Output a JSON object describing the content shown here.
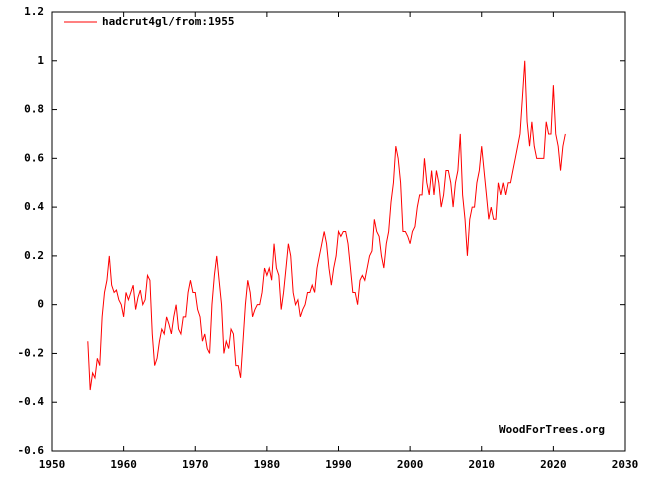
{
  "chart_data": {
    "type": "line",
    "annotation": "WoodForTrees.org",
    "legend": "top-left",
    "grid": false,
    "xlim": [
      1950,
      2030
    ],
    "xticks": [
      1950,
      1960,
      1970,
      1980,
      1990,
      2000,
      2010,
      2020,
      2030
    ],
    "ylim": [
      -0.6,
      1.2
    ],
    "yticks": [
      -0.6,
      -0.4,
      -0.2,
      0,
      0.2,
      0.4,
      0.6,
      0.8,
      1,
      1.2
    ],
    "x": [
      1955,
      1955.33,
      1955.67,
      1956,
      1956.33,
      1956.67,
      1957,
      1957.33,
      1957.67,
      1958,
      1958.33,
      1958.67,
      1959,
      1959.33,
      1959.67,
      1960,
      1960.33,
      1960.67,
      1961,
      1961.33,
      1961.67,
      1962,
      1962.33,
      1962.67,
      1963,
      1963.33,
      1963.67,
      1964,
      1964.33,
      1964.67,
      1965,
      1965.33,
      1965.67,
      1966,
      1966.33,
      1966.67,
      1967,
      1967.33,
      1967.67,
      1968,
      1968.33,
      1968.67,
      1969,
      1969.33,
      1969.67,
      1970,
      1970.33,
      1970.67,
      1971,
      1971.33,
      1971.67,
      1972,
      1972.33,
      1972.67,
      1973,
      1973.33,
      1973.67,
      1974,
      1974.33,
      1974.67,
      1975,
      1975.33,
      1975.67,
      1976,
      1976.33,
      1976.67,
      1977,
      1977.33,
      1977.67,
      1978,
      1978.33,
      1978.67,
      1979,
      1979.33,
      1979.67,
      1980,
      1980.33,
      1980.67,
      1981,
      1981.33,
      1981.67,
      1982,
      1982.33,
      1982.67,
      1983,
      1983.33,
      1983.67,
      1984,
      1984.33,
      1984.67,
      1985,
      1985.33,
      1985.67,
      1986,
      1986.33,
      1986.67,
      1987,
      1987.33,
      1987.67,
      1988,
      1988.33,
      1988.67,
      1989,
      1989.33,
      1989.67,
      1990,
      1990.33,
      1990.67,
      1991,
      1991.33,
      1991.67,
      1992,
      1992.33,
      1992.67,
      1993,
      1993.33,
      1993.67,
      1994,
      1994.33,
      1994.67,
      1995,
      1995.33,
      1995.67,
      1996,
      1996.33,
      1996.67,
      1997,
      1997.33,
      1997.67,
      1998,
      1998.33,
      1998.67,
      1999,
      1999.33,
      1999.67,
      2000,
      2000.33,
      2000.67,
      2001,
      2001.33,
      2001.67,
      2002,
      2002.33,
      2002.67,
      2003,
      2003.33,
      2003.67,
      2004,
      2004.33,
      2004.67,
      2005,
      2005.33,
      2005.67,
      2006,
      2006.33,
      2006.67,
      2007,
      2007.33,
      2007.67,
      2008,
      2008.33,
      2008.67,
      2009,
      2009.33,
      2009.67,
      2010,
      2010.33,
      2010.67,
      2011,
      2011.33,
      2011.67,
      2012,
      2012.33,
      2012.67,
      2013,
      2013.33,
      2013.67,
      2014,
      2014.33,
      2014.67,
      2015,
      2015.33,
      2015.67,
      2016,
      2016.33,
      2016.67,
      2017,
      2017.33,
      2017.67,
      2018,
      2018.33,
      2018.67,
      2019,
      2019.33,
      2019.67,
      2020,
      2020.33,
      2020.67,
      2021,
      2021.33,
      2021.67
    ],
    "series": [
      {
        "name": "hadcrut4gl/from:1955",
        "color": "#ff0000",
        "values": [
          -0.15,
          -0.35,
          -0.28,
          -0.3,
          -0.22,
          -0.25,
          -0.05,
          0.05,
          0.1,
          0.2,
          0.08,
          0.05,
          0.06,
          0.02,
          0.0,
          -0.05,
          0.05,
          0.02,
          0.05,
          0.08,
          -0.02,
          0.03,
          0.06,
          0.0,
          0.02,
          0.12,
          0.1,
          -0.12,
          -0.25,
          -0.22,
          -0.15,
          -0.1,
          -0.12,
          -0.05,
          -0.08,
          -0.12,
          -0.05,
          0.0,
          -0.1,
          -0.12,
          -0.05,
          -0.05,
          0.05,
          0.1,
          0.05,
          0.05,
          -0.02,
          -0.05,
          -0.15,
          -0.12,
          -0.18,
          -0.2,
          0.0,
          0.12,
          0.2,
          0.1,
          0.0,
          -0.2,
          -0.15,
          -0.18,
          -0.1,
          -0.12,
          -0.25,
          -0.25,
          -0.3,
          -0.15,
          0.0,
          0.1,
          0.05,
          -0.05,
          -0.02,
          0.0,
          0.0,
          0.05,
          0.15,
          0.12,
          0.15,
          0.1,
          0.25,
          0.15,
          0.12,
          -0.02,
          0.05,
          0.15,
          0.25,
          0.2,
          0.05,
          0.0,
          0.02,
          -0.05,
          -0.02,
          0.0,
          0.05,
          0.05,
          0.08,
          0.05,
          0.15,
          0.2,
          0.25,
          0.3,
          0.25,
          0.15,
          0.08,
          0.15,
          0.2,
          0.3,
          0.28,
          0.3,
          0.3,
          0.25,
          0.15,
          0.05,
          0.05,
          0.0,
          0.1,
          0.12,
          0.1,
          0.15,
          0.2,
          0.22,
          0.35,
          0.3,
          0.28,
          0.2,
          0.15,
          0.25,
          0.3,
          0.42,
          0.5,
          0.65,
          0.6,
          0.5,
          0.3,
          0.3,
          0.28,
          0.25,
          0.3,
          0.32,
          0.4,
          0.45,
          0.45,
          0.6,
          0.5,
          0.45,
          0.55,
          0.45,
          0.55,
          0.5,
          0.4,
          0.45,
          0.55,
          0.55,
          0.5,
          0.4,
          0.5,
          0.55,
          0.7,
          0.45,
          0.35,
          0.2,
          0.35,
          0.4,
          0.4,
          0.5,
          0.55,
          0.65,
          0.55,
          0.45,
          0.35,
          0.4,
          0.35,
          0.35,
          0.5,
          0.45,
          0.5,
          0.45,
          0.5,
          0.5,
          0.55,
          0.6,
          0.65,
          0.7,
          0.85,
          1.0,
          0.75,
          0.65,
          0.75,
          0.65,
          0.6,
          0.6,
          0.6,
          0.6,
          0.75,
          0.7,
          0.7,
          0.9,
          0.7,
          0.65,
          0.55,
          0.65,
          0.7
        ]
      }
    ]
  }
}
